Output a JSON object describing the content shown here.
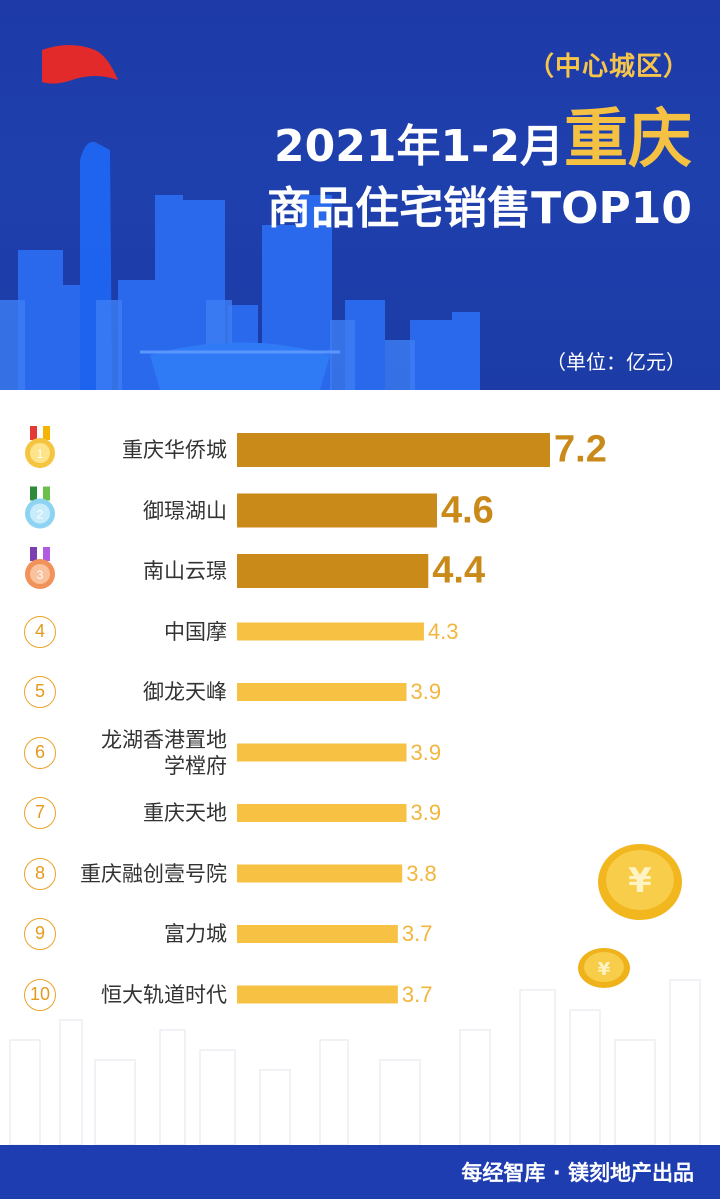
{
  "header": {
    "subtitle": "（中心城区）",
    "title_part1": "2021年1-2月",
    "title_highlight": "重庆",
    "title_line2": "商品住宅销售TOP10",
    "unit": "（单位：亿元）"
  },
  "colors": {
    "header_bg": "#1e40ad",
    "bar_top3": "#c98a1a",
    "bar_rest": "#f7c243",
    "accent_yellow": "#f5c142"
  },
  "chart_data": {
    "type": "bar",
    "orientation": "horizontal",
    "categories": [
      "重庆华侨城",
      "御璟湖山",
      "南山云璟",
      "中国摩",
      "御龙天峰",
      "龙湖香港置地\n学樘府",
      "重庆天地",
      "重庆融创壹号院",
      "富力城",
      "恒大轨道时代"
    ],
    "values": [
      7.2,
      4.6,
      4.4,
      4.3,
      3.9,
      3.9,
      3.9,
      3.8,
      3.7,
      3.7
    ],
    "value_labels": [
      "7.2",
      "4.6",
      "4.4",
      "4.3",
      "3.9",
      "3.9",
      "3.9",
      "3.8",
      "3.7",
      "3.7"
    ],
    "ranks": [
      "1",
      "2",
      "3",
      "4",
      "5",
      "6",
      "7",
      "8",
      "9",
      "10"
    ],
    "top3_icons": [
      "gold-medal-icon",
      "silver-medal-icon",
      "bronze-medal-icon"
    ],
    "xlim": [
      0,
      7.2
    ]
  },
  "footer": {
    "credit": "每经智库 · 镁刻地产出品"
  }
}
